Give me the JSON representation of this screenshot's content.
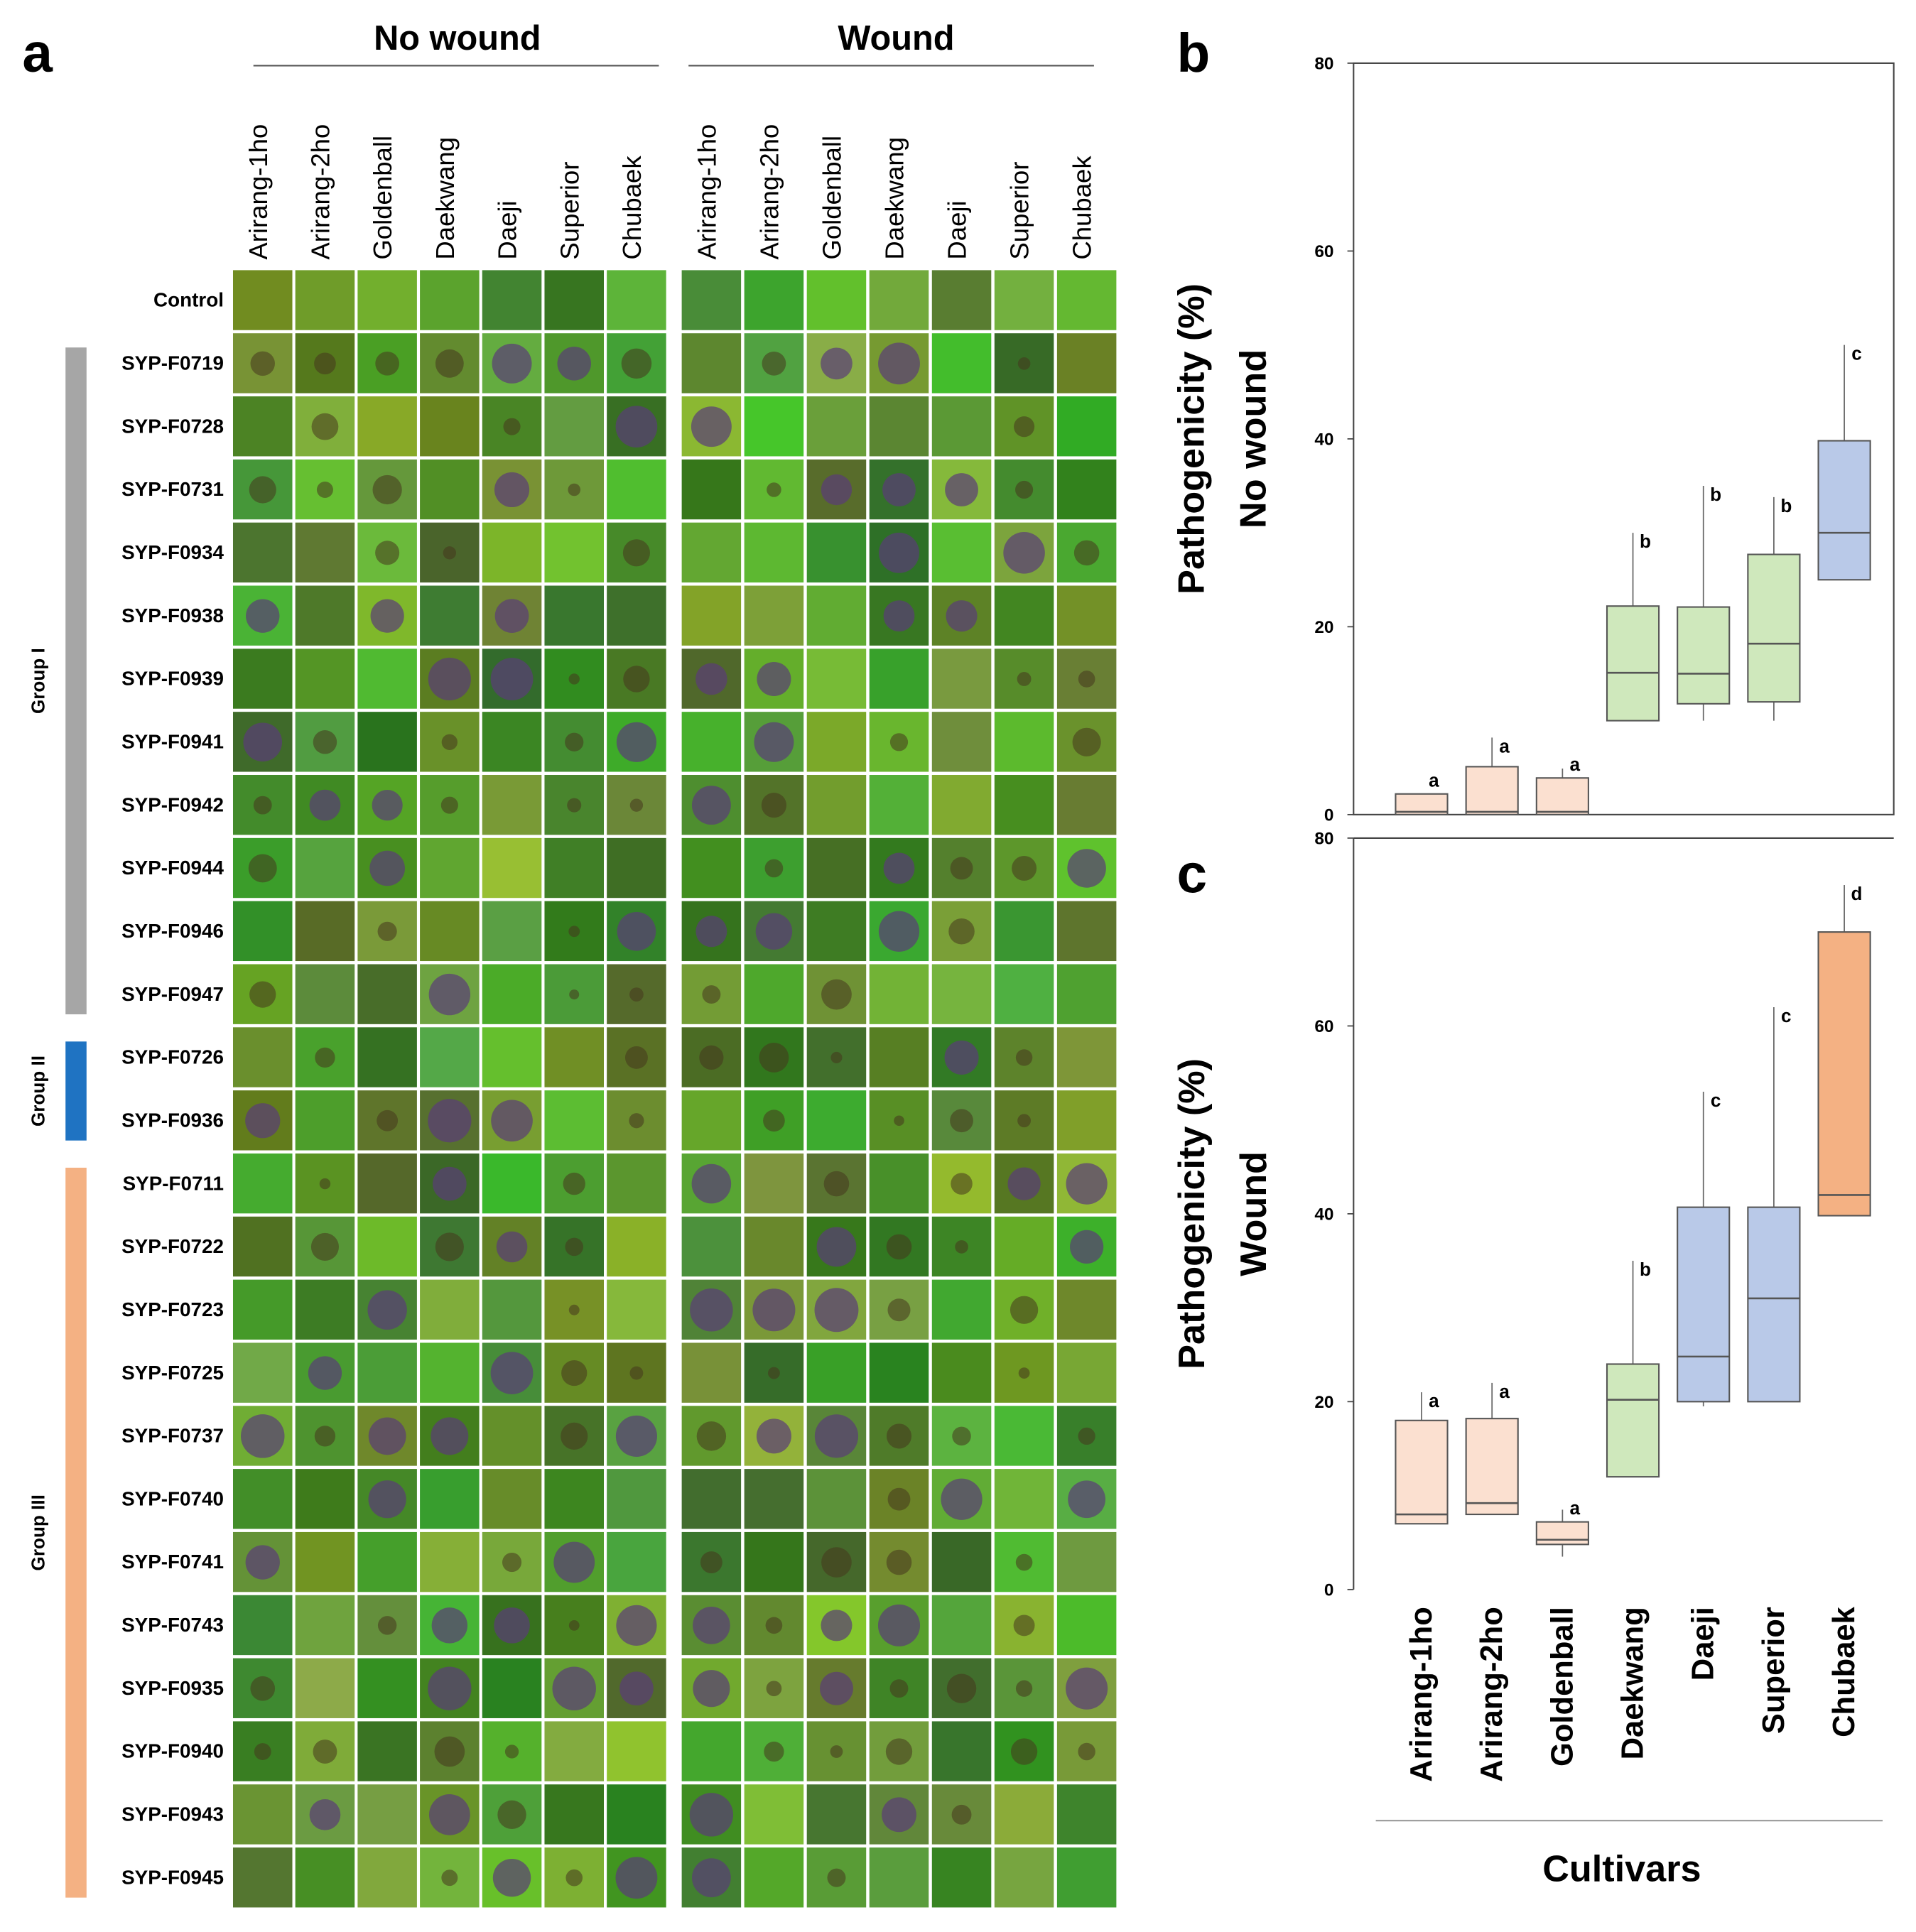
{
  "panel_a": {
    "label": "a",
    "conditions": [
      "No wound",
      "Wound"
    ],
    "cultivars": [
      "Arirang-1ho",
      "Arirang-2ho",
      "Goldenball",
      "Daekwang",
      "Daeji",
      "Superior",
      "Chubaek"
    ],
    "control": "Control",
    "groups": [
      {
        "label": "Group I",
        "color": "#a6a6a6",
        "rows": [
          "SYP-F0719",
          "SYP-F0728",
          "SYP-F0731",
          "SYP-F0934",
          "SYP-F0938",
          "SYP-F0939",
          "SYP-F0941",
          "SYP-F0942",
          "SYP-F0944",
          "SYP-F0946",
          "SYP-F0947"
        ]
      },
      {
        "label": "Group II",
        "color": "#1f73c2",
        "rows": [
          "SYP-F0726",
          "SYP-F0936"
        ]
      },
      {
        "label": "Group III",
        "color": "#f4b183",
        "rows": [
          "SYP-F0711",
          "SYP-F0722",
          "SYP-F0723",
          "SYP-F0725",
          "SYP-F0737",
          "SYP-F0740",
          "SYP-F0741",
          "SYP-F0743",
          "SYP-F0935",
          "SYP-F0940",
          "SYP-F0943",
          "SYP-F0945"
        ]
      }
    ]
  },
  "chart_data": [
    {
      "type": "box",
      "panel": "b",
      "ylabel": [
        "Pathogenicity (%)",
        "No wound"
      ],
      "ylim": [
        0,
        80
      ],
      "yticks": [
        0,
        20,
        40,
        60,
        80
      ],
      "boxes": [
        {
          "min": 0,
          "q1": 0,
          "median": 0.3,
          "q3": 2.2,
          "max": 2.2,
          "color": "#fbe0d0",
          "label": "a"
        },
        {
          "min": 0,
          "q1": 0,
          "median": 0.3,
          "q3": 5.1,
          "max": 8.2,
          "color": "#fbe0d0",
          "label": "a"
        },
        {
          "min": 0,
          "q1": 0,
          "median": 0.3,
          "q3": 3.9,
          "max": 4.9,
          "color": "#fbe0d0",
          "label": "a"
        },
        {
          "min": 10,
          "q1": 10,
          "median": 15.1,
          "q3": 22.2,
          "max": 30,
          "color": "#cfe8bc",
          "label": "b"
        },
        {
          "min": 10,
          "q1": 11.8,
          "median": 15,
          "q3": 22.1,
          "max": 35,
          "color": "#cfe8bc",
          "label": "b"
        },
        {
          "min": 10,
          "q1": 12,
          "median": 18.2,
          "q3": 27.7,
          "max": 33.8,
          "color": "#cfe8bc",
          "label": "b"
        },
        {
          "min": 25,
          "q1": 25,
          "median": 30,
          "q3": 39.8,
          "max": 50,
          "color": "#b9c9e8",
          "label": "c"
        }
      ]
    },
    {
      "type": "box",
      "panel": "c",
      "ylabel": [
        "Pathogenicity (%)",
        "Wound"
      ],
      "xlabel": "Cultivars",
      "ylim": [
        0,
        80
      ],
      "yticks": [
        0,
        20,
        40,
        60,
        80
      ],
      "categories": [
        "Arirang-1ho",
        "Arirang-2ho",
        "Goldenball",
        "Daekwang",
        "Daeji",
        "Superior",
        "Chubaek"
      ],
      "boxes": [
        {
          "min": 7,
          "q1": 7,
          "median": 8,
          "q3": 18,
          "max": 21,
          "color": "#fbe0d0",
          "label": "a"
        },
        {
          "min": 8,
          "q1": 8,
          "median": 9.2,
          "q3": 18.2,
          "max": 22,
          "color": "#fbe0d0",
          "label": "a"
        },
        {
          "min": 3.5,
          "q1": 4.8,
          "median": 5.3,
          "q3": 7.2,
          "max": 8.5,
          "color": "#fbe0d0",
          "label": "a"
        },
        {
          "min": 12,
          "q1": 12,
          "median": 20.2,
          "q3": 24,
          "max": 35,
          "color": "#cfe8bc",
          "label": "b"
        },
        {
          "min": 19.5,
          "q1": 20,
          "median": 24.8,
          "q3": 40.7,
          "max": 53,
          "color": "#b9c9e8",
          "label": "c"
        },
        {
          "min": 20,
          "q1": 20,
          "median": 31,
          "q3": 40.7,
          "max": 62,
          "color": "#b9c9e8",
          "label": "c"
        },
        {
          "min": 39.8,
          "q1": 39.8,
          "median": 42,
          "q3": 70,
          "max": 75,
          "color": "#f4b183",
          "label": "d"
        }
      ]
    }
  ]
}
